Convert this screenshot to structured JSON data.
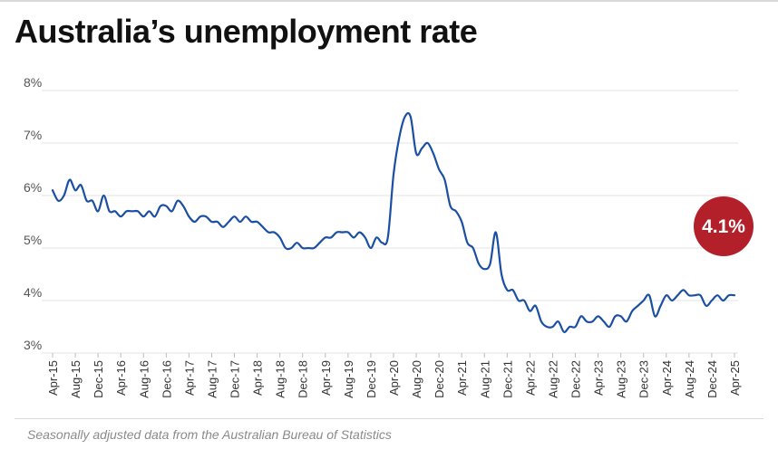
{
  "header": {
    "title": "Australia’s unemployment rate"
  },
  "footer": {
    "source": "Seasonally adjusted data from the Australian Bureau of Statistics"
  },
  "colors": {
    "line": "#1a4fa3",
    "badge": "#b3202a",
    "grid": "#e3e3e3"
  },
  "chart_data": {
    "type": "line",
    "title": "Australia’s unemployment rate",
    "xlabel": "",
    "ylabel": "",
    "ylim": [
      3,
      8
    ],
    "grid": true,
    "y_ticks": [
      {
        "value": 3,
        "label": "3%"
      },
      {
        "value": 4,
        "label": "4%"
      },
      {
        "value": 5,
        "label": "5%"
      },
      {
        "value": 6,
        "label": "6%"
      },
      {
        "value": 7,
        "label": "7%"
      },
      {
        "value": 8,
        "label": "8%"
      }
    ],
    "x_start": "2015-04",
    "x_end": "2025-04",
    "x_ticks": [
      "Apr-15",
      "Aug-15",
      "Dec-15",
      "Apr-16",
      "Aug-16",
      "Dec-16",
      "Apr-17",
      "Aug-17",
      "Dec-17",
      "Apr-18",
      "Aug-18",
      "Dec-18",
      "Apr-19",
      "Aug-19",
      "Dec-19",
      "Apr-20",
      "Aug-20",
      "Dec-20",
      "Apr-21",
      "Aug-21",
      "Dec-21",
      "Apr-22",
      "Aug-22",
      "Dec-22",
      "Apr-23",
      "Aug-23",
      "Dec-23",
      "Apr-24",
      "Aug-24",
      "Dec-24",
      "Apr-25"
    ],
    "annotation": {
      "label": "4.1%",
      "value": 4.1
    },
    "series": [
      {
        "x": [
          "2015-04",
          "2015-05",
          "2015-06",
          "2015-07",
          "2015-08",
          "2015-09",
          "2015-10",
          "2015-11",
          "2015-12",
          "2016-01",
          "2016-02",
          "2016-03",
          "2016-04",
          "2016-05",
          "2016-06",
          "2016-07",
          "2016-08",
          "2016-09",
          "2016-10",
          "2016-11",
          "2016-12",
          "2017-01",
          "2017-02",
          "2017-03",
          "2017-04",
          "2017-05",
          "2017-06",
          "2017-07",
          "2017-08",
          "2017-09",
          "2017-10",
          "2017-11",
          "2017-12",
          "2018-01",
          "2018-02",
          "2018-03",
          "2018-04",
          "2018-05",
          "2018-06",
          "2018-07",
          "2018-08",
          "2018-09",
          "2018-10",
          "2018-11",
          "2018-12",
          "2019-01",
          "2019-02",
          "2019-03",
          "2019-04",
          "2019-05",
          "2019-06",
          "2019-07",
          "2019-08",
          "2019-09",
          "2019-10",
          "2019-11",
          "2019-12",
          "2020-01",
          "2020-02",
          "2020-03",
          "2020-04",
          "2020-05",
          "2020-06",
          "2020-07",
          "2020-08",
          "2020-09",
          "2020-10",
          "2020-11",
          "2020-12",
          "2021-01",
          "2021-02",
          "2021-03",
          "2021-04",
          "2021-05",
          "2021-06",
          "2021-07",
          "2021-08",
          "2021-09",
          "2021-10",
          "2021-11",
          "2021-12",
          "2022-01",
          "2022-02",
          "2022-03",
          "2022-04",
          "2022-05",
          "2022-06",
          "2022-07",
          "2022-08",
          "2022-09",
          "2022-10",
          "2022-11",
          "2022-12",
          "2023-01",
          "2023-02",
          "2023-03",
          "2023-04",
          "2023-05",
          "2023-06",
          "2023-07",
          "2023-08",
          "2023-09",
          "2023-10",
          "2023-11",
          "2023-12",
          "2024-01",
          "2024-02",
          "2024-03",
          "2024-04",
          "2024-05",
          "2024-06",
          "2024-07",
          "2024-08",
          "2024-09",
          "2024-10",
          "2024-11",
          "2024-12",
          "2025-01",
          "2025-02",
          "2025-03",
          "2025-04"
        ],
        "values": [
          6.1,
          5.9,
          6.0,
          6.3,
          6.1,
          6.2,
          5.9,
          5.9,
          5.7,
          6.0,
          5.7,
          5.7,
          5.6,
          5.7,
          5.7,
          5.7,
          5.6,
          5.7,
          5.6,
          5.8,
          5.8,
          5.7,
          5.9,
          5.8,
          5.6,
          5.5,
          5.6,
          5.6,
          5.5,
          5.5,
          5.4,
          5.5,
          5.6,
          5.5,
          5.6,
          5.5,
          5.5,
          5.4,
          5.3,
          5.3,
          5.2,
          5.0,
          5.0,
          5.1,
          5.0,
          5.0,
          5.0,
          5.1,
          5.2,
          5.2,
          5.3,
          5.3,
          5.3,
          5.2,
          5.3,
          5.2,
          5.0,
          5.2,
          5.1,
          5.2,
          6.4,
          7.1,
          7.5,
          7.5,
          6.8,
          6.9,
          7.0,
          6.8,
          6.5,
          6.3,
          5.8,
          5.7,
          5.5,
          5.1,
          5.0,
          4.7,
          4.6,
          4.7,
          5.3,
          4.5,
          4.2,
          4.2,
          4.0,
          4.0,
          3.8,
          3.9,
          3.6,
          3.5,
          3.5,
          3.6,
          3.4,
          3.5,
          3.5,
          3.7,
          3.6,
          3.6,
          3.7,
          3.6,
          3.5,
          3.7,
          3.7,
          3.6,
          3.8,
          3.9,
          4.0,
          4.1,
          3.7,
          3.9,
          4.1,
          4.0,
          4.1,
          4.2,
          4.1,
          4.1,
          4.1,
          3.9,
          4.0,
          4.1,
          4.0,
          4.1,
          4.1
        ]
      }
    ]
  }
}
